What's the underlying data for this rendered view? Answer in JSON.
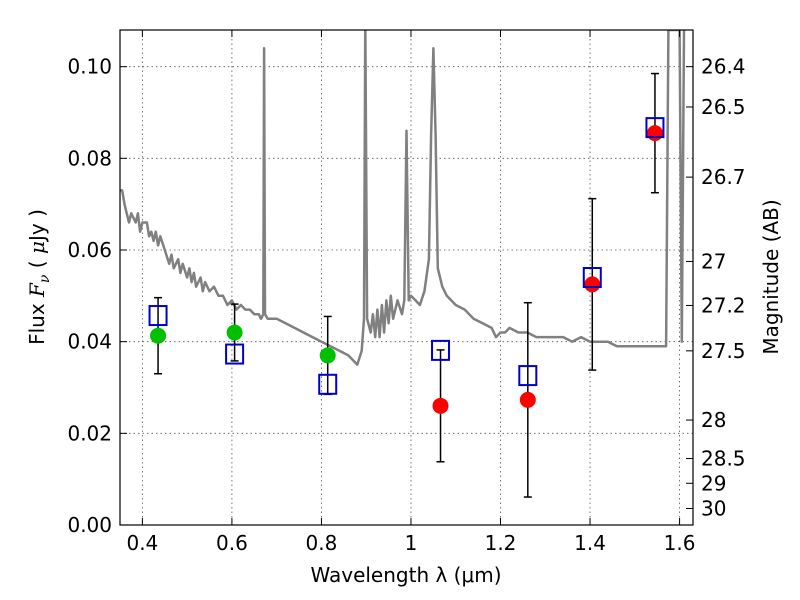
{
  "chart_data": {
    "type": "scatter",
    "xlabel": "Wavelength  λ (μm)",
    "ylabel_left": {
      "prefix": "Flux  ",
      "symbol": "F",
      "subscript": "ν",
      "unit_open": "  ( ",
      "mu": "μ",
      "unit_rest": "Jy )"
    },
    "ylabel_right": "Magnitude (AB)",
    "xlim": [
      0.35,
      1.63
    ],
    "ylim": [
      0.0,
      0.108
    ],
    "grid": true,
    "x_ticks": [
      {
        "value": 0.4,
        "label": "0.4"
      },
      {
        "value": 0.6,
        "label": "0.6"
      },
      {
        "value": 0.8,
        "label": "0.8"
      },
      {
        "value": 1.0,
        "label": "1"
      },
      {
        "value": 1.2,
        "label": "1.2"
      },
      {
        "value": 1.4,
        "label": "1.4"
      },
      {
        "value": 1.6,
        "label": "1.6"
      }
    ],
    "y_ticks": [
      {
        "value": 0.0,
        "label": "0.00"
      },
      {
        "value": 0.02,
        "label": "0.02"
      },
      {
        "value": 0.04,
        "label": "0.04"
      },
      {
        "value": 0.06,
        "label": "0.06"
      },
      {
        "value": 0.08,
        "label": "0.08"
      },
      {
        "value": 0.1,
        "label": "0.10"
      }
    ],
    "magnitude_ticks": [
      {
        "flux": 0.1,
        "label": "26.4"
      },
      {
        "flux": 0.0912,
        "label": "26.5"
      },
      {
        "flux": 0.0759,
        "label": "26.7"
      },
      {
        "flux": 0.0575,
        "label": "27"
      },
      {
        "flux": 0.0479,
        "label": "27.2"
      },
      {
        "flux": 0.038,
        "label": "27.5"
      },
      {
        "flux": 0.0229,
        "label": "28"
      },
      {
        "flux": 0.0145,
        "label": "28.5"
      },
      {
        "flux": 0.0091,
        "label": "29"
      },
      {
        "flux": 0.0036,
        "label": "30"
      }
    ],
    "observed": [
      {
        "x": 0.435,
        "y": 0.0413,
        "yerr": 0.0083,
        "color": "#00c000"
      },
      {
        "x": 0.606,
        "y": 0.042,
        "yerr": 0.0062,
        "color": "#00c000"
      },
      {
        "x": 0.814,
        "y": 0.037,
        "yerr": 0.0085,
        "color": "#00c000"
      },
      {
        "x": 1.066,
        "y": 0.026,
        "yerr": 0.0122,
        "color": "#ff0000"
      },
      {
        "x": 1.261,
        "y": 0.0273,
        "yerr": 0.0212,
        "color": "#ff0000"
      },
      {
        "x": 1.405,
        "y": 0.0525,
        "yerr": 0.0187,
        "color": "#ff0000"
      },
      {
        "x": 1.545,
        "y": 0.0855,
        "yerr": 0.013,
        "color": "#ff0000"
      }
    ],
    "model_photometry": [
      {
        "x": 0.435,
        "y": 0.0457
      },
      {
        "x": 0.606,
        "y": 0.0373
      },
      {
        "x": 0.814,
        "y": 0.0307
      },
      {
        "x": 1.066,
        "y": 0.0381
      },
      {
        "x": 1.261,
        "y": 0.0326
      },
      {
        "x": 1.405,
        "y": 0.054
      },
      {
        "x": 1.545,
        "y": 0.0867
      }
    ],
    "sed_curve": [
      [
        0.35,
        0.073
      ],
      [
        0.355,
        0.073
      ],
      [
        0.36,
        0.07
      ],
      [
        0.365,
        0.068
      ],
      [
        0.37,
        0.066
      ],
      [
        0.375,
        0.068
      ],
      [
        0.385,
        0.066
      ],
      [
        0.39,
        0.068
      ],
      [
        0.395,
        0.064
      ],
      [
        0.4,
        0.066
      ],
      [
        0.41,
        0.066
      ],
      [
        0.415,
        0.063
      ],
      [
        0.42,
        0.064
      ],
      [
        0.425,
        0.062
      ],
      [
        0.43,
        0.064
      ],
      [
        0.435,
        0.061
      ],
      [
        0.44,
        0.063
      ],
      [
        0.45,
        0.06
      ],
      [
        0.46,
        0.057
      ],
      [
        0.465,
        0.059
      ],
      [
        0.47,
        0.056
      ],
      [
        0.48,
        0.058
      ],
      [
        0.485,
        0.055
      ],
      [
        0.49,
        0.057
      ],
      [
        0.5,
        0.054
      ],
      [
        0.505,
        0.056
      ],
      [
        0.51,
        0.053
      ],
      [
        0.515,
        0.055
      ],
      [
        0.52,
        0.052
      ],
      [
        0.53,
        0.054
      ],
      [
        0.535,
        0.051
      ],
      [
        0.54,
        0.053
      ],
      [
        0.55,
        0.051
      ],
      [
        0.56,
        0.052
      ],
      [
        0.57,
        0.05
      ],
      [
        0.58,
        0.05
      ],
      [
        0.59,
        0.048
      ],
      [
        0.6,
        0.049
      ],
      [
        0.61,
        0.047
      ],
      [
        0.62,
        0.048
      ],
      [
        0.63,
        0.047
      ],
      [
        0.64,
        0.047
      ],
      [
        0.65,
        0.046
      ],
      [
        0.66,
        0.046
      ],
      [
        0.665,
        0.045
      ],
      [
        0.67,
        0.046
      ],
      [
        0.672,
        0.104
      ],
      [
        0.674,
        0.046
      ],
      [
        0.68,
        0.045
      ],
      [
        0.7,
        0.045
      ],
      [
        0.72,
        0.044
      ],
      [
        0.74,
        0.043
      ],
      [
        0.76,
        0.042
      ],
      [
        0.78,
        0.041
      ],
      [
        0.8,
        0.04
      ],
      [
        0.82,
        0.039
      ],
      [
        0.84,
        0.038
      ],
      [
        0.86,
        0.037
      ],
      [
        0.88,
        0.035
      ],
      [
        0.89,
        0.038
      ],
      [
        0.895,
        0.045
      ],
      [
        0.898,
        0.11
      ],
      [
        0.902,
        0.045
      ],
      [
        0.91,
        0.042
      ],
      [
        0.915,
        0.046
      ],
      [
        0.92,
        0.041
      ],
      [
        0.925,
        0.047
      ],
      [
        0.93,
        0.041
      ],
      [
        0.935,
        0.048
      ],
      [
        0.94,
        0.042
      ],
      [
        0.945,
        0.049
      ],
      [
        0.95,
        0.044
      ],
      [
        0.955,
        0.05
      ],
      [
        0.96,
        0.045
      ],
      [
        0.97,
        0.049
      ],
      [
        0.98,
        0.046
      ],
      [
        0.985,
        0.049
      ],
      [
        0.99,
        0.086
      ],
      [
        0.995,
        0.049
      ],
      [
        1.0,
        0.05
      ],
      [
        1.01,
        0.049
      ],
      [
        1.02,
        0.048
      ],
      [
        1.03,
        0.051
      ],
      [
        1.04,
        0.058
      ],
      [
        1.045,
        0.085
      ],
      [
        1.05,
        0.104
      ],
      [
        1.055,
        0.085
      ],
      [
        1.06,
        0.056
      ],
      [
        1.07,
        0.052
      ],
      [
        1.08,
        0.05
      ],
      [
        1.09,
        0.049
      ],
      [
        1.1,
        0.048
      ],
      [
        1.12,
        0.047
      ],
      [
        1.14,
        0.045
      ],
      [
        1.16,
        0.044
      ],
      [
        1.18,
        0.043
      ],
      [
        1.19,
        0.041
      ],
      [
        1.2,
        0.042
      ],
      [
        1.21,
        0.042
      ],
      [
        1.22,
        0.043
      ],
      [
        1.24,
        0.042
      ],
      [
        1.26,
        0.042
      ],
      [
        1.28,
        0.041
      ],
      [
        1.3,
        0.041
      ],
      [
        1.32,
        0.041
      ],
      [
        1.34,
        0.041
      ],
      [
        1.36,
        0.04
      ],
      [
        1.38,
        0.041
      ],
      [
        1.4,
        0.04
      ],
      [
        1.42,
        0.04
      ],
      [
        1.44,
        0.04
      ],
      [
        1.46,
        0.039
      ],
      [
        1.48,
        0.039
      ],
      [
        1.5,
        0.039
      ],
      [
        1.52,
        0.039
      ],
      [
        1.54,
        0.039
      ],
      [
        1.56,
        0.039
      ],
      [
        1.57,
        0.039
      ],
      [
        1.575,
        0.108
      ],
      [
        1.6,
        0.108
      ],
      [
        1.605,
        0.04
      ],
      [
        1.61,
        0.108
      ]
    ],
    "colors": {
      "curve": "#808080",
      "model_marker": "#0000cc",
      "errorbar": "#000000",
      "grid": "#555555"
    }
  }
}
